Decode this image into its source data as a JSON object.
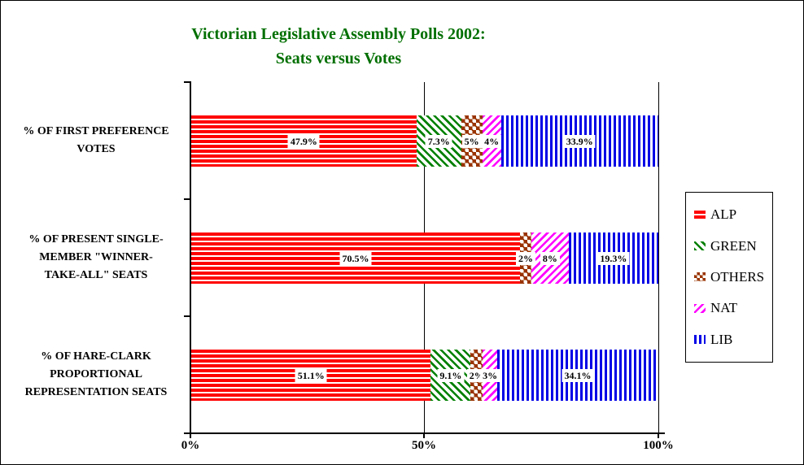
{
  "title": {
    "text": "Victorian Legislative Assembly Polls 2002:\nSeats versus Votes",
    "color": "#006F00"
  },
  "legend": {
    "items": [
      {
        "label": "ALP",
        "pattern": "horizontal-stripes",
        "color": "#FF0000"
      },
      {
        "label": "GREEN",
        "pattern": "diagonal-stripes-down",
        "color": "#008000"
      },
      {
        "label": "OTHERS",
        "pattern": "diamond-checker",
        "color": "#993300"
      },
      {
        "label": "NAT",
        "pattern": "diagonal-stripes-up",
        "color": "#FF00FF"
      },
      {
        "label": "LIB",
        "pattern": "vertical-stripes",
        "color": "#0000E6"
      }
    ]
  },
  "chart_data": {
    "type": "bar",
    "orientation": "horizontal",
    "stacked": true,
    "normalized_to_100pct": true,
    "title": "Victorian Legislative Assembly Polls 2002: Seats versus Votes",
    "xlim": [
      0,
      100
    ],
    "x_ticks": [
      "0%",
      "50%",
      "100%"
    ],
    "grid": "vertical lines at 50% and 100%",
    "legend_position": "right",
    "categories": [
      "% OF FIRST PREFERENCE VOTES",
      "% OF PRESENT SINGLE-MEMBER \"WINNER-TAKE-ALL\" SEATS",
      "% OF HARE-CLARK PROPORTIONAL REPRESENTATION SEATS"
    ],
    "categories_display": [
      "% OF FIRST PREFERENCE\nVOTES",
      "% OF PRESENT SINGLE-\nMEMBER \"WINNER-\nTAKE-ALL\" SEATS",
      "% OF HARE-CLARK\nPROPORTIONAL\nREPRESENTATION SEATS"
    ],
    "series": [
      {
        "name": "ALP",
        "labels": [
          "47.9%",
          "70.5%",
          "51.1%"
        ],
        "values": [
          47.9,
          70.5,
          51.1
        ],
        "drawn_pct": [
          48.2,
          70.4,
          51.3
        ]
      },
      {
        "name": "GREEN",
        "labels": [
          "7.3%",
          "",
          "9.1%"
        ],
        "values": [
          7.3,
          0,
          9.1
        ],
        "drawn_pct": [
          9.6,
          0,
          8.5
        ]
      },
      {
        "name": "OTHERS",
        "labels": [
          "5%",
          "2%",
          "2%"
        ],
        "values": [
          5,
          2,
          2
        ],
        "drawn_pct": [
          4.5,
          2.4,
          2.6
        ]
      },
      {
        "name": "NAT",
        "labels": [
          "4%",
          "8%",
          "3%"
        ],
        "values": [
          4,
          8,
          3
        ],
        "drawn_pct": [
          4.0,
          8.0,
          3.1
        ]
      },
      {
        "name": "LIB",
        "labels": [
          "33.9%",
          "19.3%",
          "34.1%"
        ],
        "values": [
          33.9,
          19.3,
          34.1
        ],
        "drawn_pct": [
          33.7,
          19.2,
          34.5
        ]
      }
    ]
  }
}
